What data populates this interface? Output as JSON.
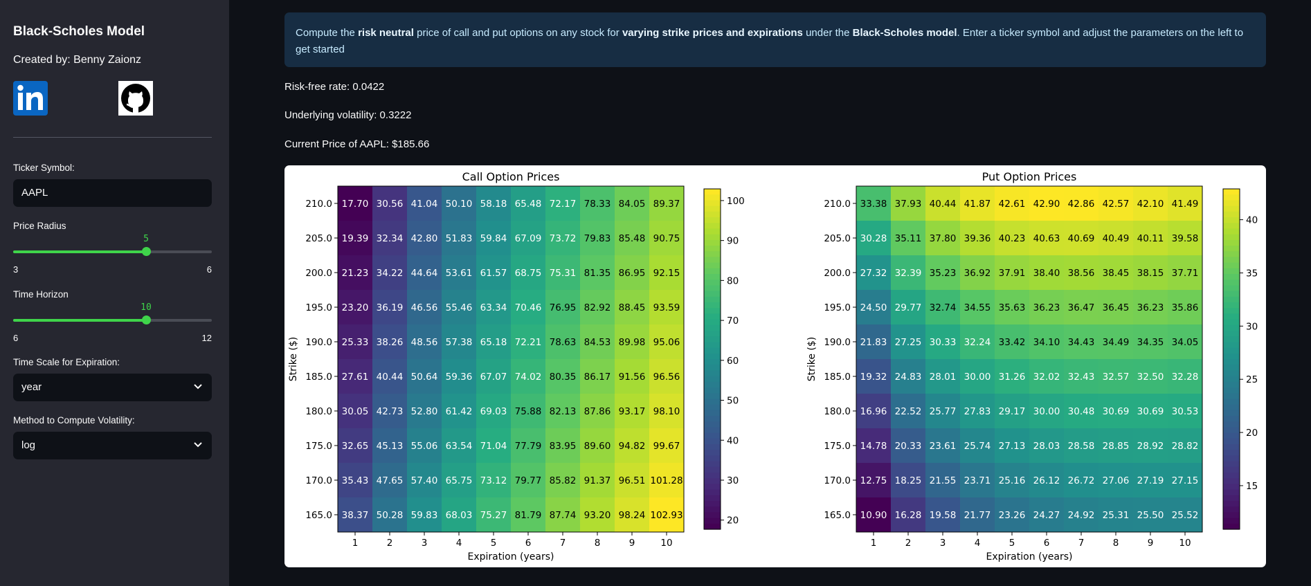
{
  "sidebar": {
    "title": "Black-Scholes Model",
    "author": "Created by: Benny Zaionz",
    "links": [
      "linkedin-icon",
      "github-icon"
    ],
    "ticker": {
      "label": "Ticker Symbol:",
      "value": "AAPL"
    },
    "price_radius": {
      "label": "Price Radius",
      "value": "5",
      "min": "3",
      "max": "6"
    },
    "time_horizon": {
      "label": "Time Horizon",
      "value": "10",
      "min": "6",
      "max": "12"
    },
    "time_scale": {
      "label": "Time Scale for Expiration:",
      "value": "year"
    },
    "vol_method": {
      "label": "Method to Compute Volatility:",
      "value": "log"
    }
  },
  "main": {
    "info": {
      "p1": "Compute the ",
      "b1": "risk neutral",
      "p2": " price of call and put options on any stock for ",
      "b2": "varying strike prices and expirations",
      "p3": " under the ",
      "b3": "Black-Scholes model",
      "p4": ". Enter a ticker symbol and adjust the parameters on the left to get started"
    },
    "risk_free": "Risk-free rate: 0.0422",
    "volatility": "Underlying volatility: 0.3222",
    "current_price": "Current Price of AAPL: $185.66"
  },
  "accent_color": "#3fd44a",
  "chart_data": [
    {
      "type": "heatmap",
      "title": "Call Option Prices",
      "xlabel": "Expiration (years)",
      "ylabel": "Strike ($)",
      "x": [
        "1",
        "2",
        "3",
        "4",
        "5",
        "6",
        "7",
        "8",
        "9",
        "10"
      ],
      "y": [
        "210.0",
        "205.0",
        "200.0",
        "195.0",
        "190.0",
        "185.0",
        "180.0",
        "175.0",
        "170.0",
        "165.0"
      ],
      "values": [
        [
          17.7,
          30.56,
          41.04,
          50.1,
          58.18,
          65.48,
          72.17,
          78.33,
          84.05,
          89.37
        ],
        [
          19.39,
          32.34,
          42.8,
          51.83,
          59.84,
          67.09,
          73.72,
          79.83,
          85.48,
          90.75
        ],
        [
          21.23,
          34.22,
          44.64,
          53.61,
          61.57,
          68.75,
          75.31,
          81.35,
          86.95,
          92.15
        ],
        [
          23.2,
          36.19,
          46.56,
          55.46,
          63.34,
          70.46,
          76.95,
          82.92,
          88.45,
          93.59
        ],
        [
          25.33,
          38.26,
          48.56,
          57.38,
          65.18,
          72.21,
          78.63,
          84.53,
          89.98,
          95.06
        ],
        [
          27.61,
          40.44,
          50.64,
          59.36,
          67.07,
          74.02,
          80.35,
          86.17,
          91.56,
          96.56
        ],
        [
          30.05,
          42.73,
          52.8,
          61.42,
          69.03,
          75.88,
          82.13,
          87.86,
          93.17,
          98.1
        ],
        [
          32.65,
          45.13,
          55.06,
          63.54,
          71.04,
          77.79,
          83.95,
          89.6,
          94.82,
          99.67
        ],
        [
          35.43,
          47.65,
          57.4,
          65.75,
          73.12,
          79.77,
          85.82,
          91.37,
          96.51,
          101.28
        ],
        [
          38.37,
          50.28,
          59.83,
          68.03,
          75.27,
          81.79,
          87.74,
          93.2,
          98.24,
          102.93
        ]
      ],
      "vmin": 17.7,
      "vmax": 102.93,
      "colorbar_ticks": [
        "20",
        "30",
        "40",
        "50",
        "60",
        "70",
        "80",
        "90",
        "100"
      ],
      "colormap": "viridis"
    },
    {
      "type": "heatmap",
      "title": "Put Option Prices",
      "xlabel": "Expiration (years)",
      "ylabel": "Strike ($)",
      "x": [
        "1",
        "2",
        "3",
        "4",
        "5",
        "6",
        "7",
        "8",
        "9",
        "10"
      ],
      "y": [
        "210.0",
        "205.0",
        "200.0",
        "195.0",
        "190.0",
        "185.0",
        "180.0",
        "175.0",
        "170.0",
        "165.0"
      ],
      "values": [
        [
          33.38,
          37.93,
          40.44,
          41.87,
          42.61,
          42.9,
          42.86,
          42.57,
          42.1,
          41.49
        ],
        [
          30.28,
          35.11,
          37.8,
          39.36,
          40.23,
          40.63,
          40.69,
          40.49,
          40.11,
          39.58
        ],
        [
          27.32,
          32.39,
          35.23,
          36.92,
          37.91,
          38.4,
          38.56,
          38.45,
          38.15,
          37.71
        ],
        [
          24.5,
          29.77,
          32.74,
          34.55,
          35.63,
          36.23,
          36.47,
          36.45,
          36.23,
          35.86
        ],
        [
          21.83,
          27.25,
          30.33,
          32.24,
          33.42,
          34.1,
          34.43,
          34.49,
          34.35,
          34.05
        ],
        [
          19.32,
          24.83,
          28.01,
          30.0,
          31.26,
          32.02,
          32.43,
          32.57,
          32.5,
          32.28
        ],
        [
          16.96,
          22.52,
          25.77,
          27.83,
          29.17,
          30.0,
          30.48,
          30.69,
          30.69,
          30.53
        ],
        [
          14.78,
          20.33,
          23.61,
          25.74,
          27.13,
          28.03,
          28.58,
          28.85,
          28.92,
          28.82
        ],
        [
          12.75,
          18.25,
          21.55,
          23.71,
          25.16,
          26.12,
          26.72,
          27.06,
          27.19,
          27.15
        ],
        [
          10.9,
          16.28,
          19.58,
          21.77,
          23.26,
          24.27,
          24.92,
          25.31,
          25.5,
          25.52
        ]
      ],
      "vmin": 10.9,
      "vmax": 42.9,
      "colorbar_ticks": [
        "15",
        "20",
        "25",
        "30",
        "35",
        "40"
      ],
      "colormap": "viridis"
    }
  ]
}
